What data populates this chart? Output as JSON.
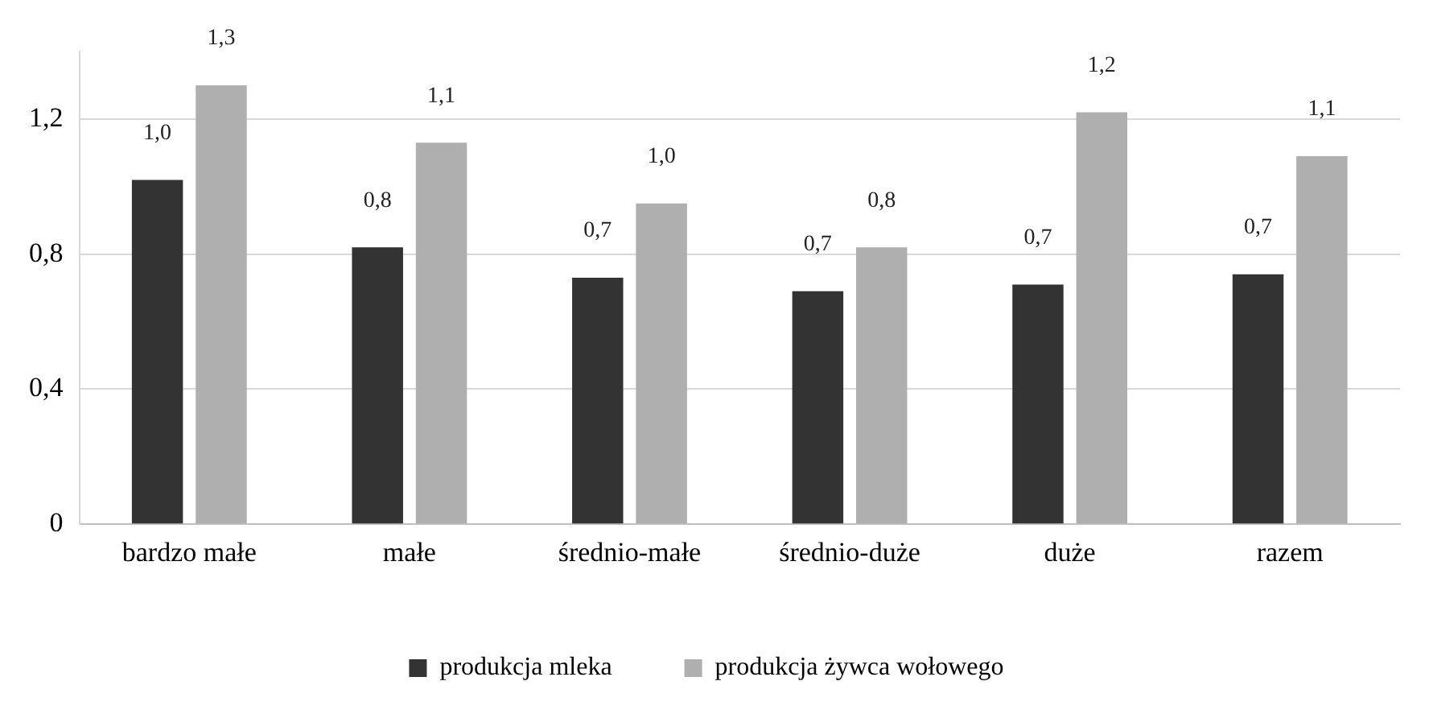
{
  "chart_data": {
    "type": "bar",
    "categories": [
      "bardzo małe",
      "małe",
      "średnio-małe",
      "średnio-duże",
      "duże",
      "razem"
    ],
    "series": [
      {
        "name": "produkcja mleka",
        "color": "#333333",
        "values": [
          1.02,
          0.82,
          0.73,
          0.69,
          0.71,
          0.74
        ],
        "value_labels": [
          "1,0",
          "0,8",
          "0,7",
          "0,7",
          "0,7",
          "0,7"
        ]
      },
      {
        "name": "produkcja żywca wołowego",
        "color": "#afafaf",
        "values": [
          1.3,
          1.13,
          0.95,
          0.82,
          1.22,
          1.09
        ],
        "value_labels": [
          "1,3",
          "1,1",
          "1,0",
          "0,8",
          "1,2",
          "1,1"
        ]
      }
    ],
    "ylim": [
      0,
      1.4
    ],
    "yticks": [
      0,
      {
        "value": 0.4,
        "label": "0,4"
      },
      {
        "value": 0.8,
        "label": "0,8"
      },
      {
        "value": 1.2,
        "label": "1,2"
      }
    ],
    "grid": "y",
    "legend": "bottom"
  }
}
